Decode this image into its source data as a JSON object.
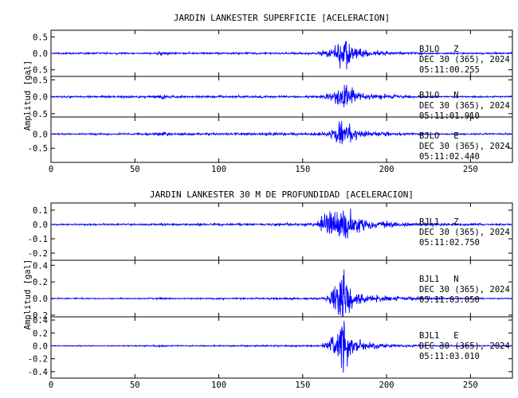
{
  "chart_data": [
    {
      "type": "line",
      "title": "JARDIN LANKESTER SUPERFICIE [ACELERACION]",
      "ylabel": "Amplitud [gal]",
      "xlabel": "",
      "xlim": [
        0,
        275
      ],
      "x_ticks": [
        0,
        50,
        100,
        150,
        200,
        250
      ],
      "line_color": "#0000ff",
      "panels": [
        {
          "station": "BJLO",
          "channel": "Z",
          "date": "DEC 30 (365), 2024",
          "time": "05:11:00.255",
          "ylim": [
            -0.7,
            0.7
          ],
          "y_ticks": [
            0.5,
            0.0,
            -0.5
          ],
          "y_tick_labels": [
            "0.5",
            "0.0",
            "-0.5"
          ],
          "envelope": [
            [
              0,
              0.02
            ],
            [
              60,
              0.02
            ],
            [
              67,
              0.05
            ],
            [
              72,
              0.02
            ],
            [
              160,
              0.03
            ],
            [
              164,
              0.12
            ],
            [
              170,
              0.22
            ],
            [
              173,
              0.35
            ],
            [
              175,
              0.6
            ],
            [
              177,
              0.3
            ],
            [
              182,
              0.14
            ],
            [
              190,
              0.07
            ],
            [
              205,
              0.04
            ],
            [
              230,
              0.02
            ],
            [
              275,
              0.02
            ]
          ]
        },
        {
          "station": "BJLO",
          "channel": "N",
          "date": "DEC 30 (365), 2024",
          "time": "05:11:01.910",
          "ylim": [
            -0.6,
            0.6
          ],
          "y_ticks": [
            0.5,
            0.0,
            -0.5
          ],
          "y_tick_labels": [
            "0.5",
            "0.0",
            "-0.5"
          ],
          "envelope": [
            [
              0,
              0.02
            ],
            [
              60,
              0.03
            ],
            [
              66,
              0.06
            ],
            [
              72,
              0.03
            ],
            [
              160,
              0.03
            ],
            [
              166,
              0.08
            ],
            [
              172,
              0.2
            ],
            [
              175,
              0.55
            ],
            [
              177,
              0.3
            ],
            [
              182,
              0.12
            ],
            [
              190,
              0.06
            ],
            [
              205,
              0.04
            ],
            [
              230,
              0.02
            ],
            [
              275,
              0.02
            ]
          ]
        },
        {
          "station": "BJLO",
          "channel": "E",
          "date": "DEC 30 (365), 2024",
          "time": "05:11:02.440",
          "ylim": [
            -1.0,
            0.6
          ],
          "y_ticks": [
            0.0,
            -0.5
          ],
          "y_tick_labels": [
            "0.0",
            "-0.5"
          ],
          "envelope": [
            [
              0,
              0.02
            ],
            [
              60,
              0.03
            ],
            [
              66,
              0.07
            ],
            [
              72,
              0.03
            ],
            [
              160,
              0.04
            ],
            [
              165,
              0.12
            ],
            [
              170,
              0.25
            ],
            [
              173,
              0.4
            ],
            [
              175,
              0.65
            ],
            [
              177,
              0.35
            ],
            [
              182,
              0.15
            ],
            [
              190,
              0.07
            ],
            [
              205,
              0.04
            ],
            [
              230,
              0.02
            ],
            [
              275,
              0.02
            ]
          ]
        }
      ]
    },
    {
      "type": "line",
      "title": "JARDIN LANKESTER 30 M DE PROFUNDIDAD [ACELERACION]",
      "ylabel": "Amplitud [gal]",
      "xlabel": "",
      "xlim": [
        0,
        275
      ],
      "x_ticks": [
        0,
        50,
        100,
        150,
        200,
        250
      ],
      "line_color": "#0000ff",
      "panels": [
        {
          "station": "BJL1",
          "channel": "Z",
          "date": "DEC 30 (365), 2024",
          "time": "05:11:02.750",
          "ylim": [
            -0.25,
            0.15
          ],
          "y_ticks": [
            0.1,
            0.0,
            -0.1,
            -0.2
          ],
          "y_tick_labels": [
            "0.1",
            "0.0",
            "-0.1",
            "-0.2"
          ],
          "envelope": [
            [
              0,
              0.004
            ],
            [
              60,
              0.005
            ],
            [
              66,
              0.008
            ],
            [
              72,
              0.005
            ],
            [
              158,
              0.008
            ],
            [
              162,
              0.05
            ],
            [
              166,
              0.08
            ],
            [
              170,
              0.09
            ],
            [
              173,
              0.1
            ],
            [
              175,
              0.13
            ],
            [
              178,
              0.07
            ],
            [
              185,
              0.04
            ],
            [
              195,
              0.02
            ],
            [
              215,
              0.01
            ],
            [
              240,
              0.006
            ],
            [
              275,
              0.004
            ]
          ]
        },
        {
          "station": "BJL1",
          "channel": "N",
          "date": "DEC 30 (365), 2024",
          "time": "05:11:03.050",
          "ylim": [
            -0.22,
            0.46
          ],
          "y_ticks": [
            0.4,
            0.2,
            0.0,
            -0.2
          ],
          "y_tick_labels": [
            "0.4",
            "0.2",
            "0.0",
            "-0.2"
          ],
          "envelope": [
            [
              0,
              0.005
            ],
            [
              60,
              0.006
            ],
            [
              66,
              0.012
            ],
            [
              72,
              0.006
            ],
            [
              160,
              0.01
            ],
            [
              165,
              0.04
            ],
            [
              170,
              0.12
            ],
            [
              174,
              0.38
            ],
            [
              176,
              0.2
            ],
            [
              180,
              0.08
            ],
            [
              190,
              0.04
            ],
            [
              205,
              0.02
            ],
            [
              230,
              0.01
            ],
            [
              275,
              0.005
            ]
          ]
        },
        {
          "station": "BJL1",
          "channel": "E",
          "date": "DEC 30 (365), 2024",
          "time": "05:11:03.010",
          "ylim": [
            -0.5,
            0.45
          ],
          "y_ticks": [
            0.4,
            0.2,
            0.0,
            -0.2,
            -0.4
          ],
          "y_tick_labels": [
            "0.4",
            "0.2",
            "0.0",
            "-0.2",
            "-0.4"
          ],
          "envelope": [
            [
              0,
              0.005
            ],
            [
              60,
              0.007
            ],
            [
              66,
              0.015
            ],
            [
              72,
              0.007
            ],
            [
              160,
              0.01
            ],
            [
              165,
              0.06
            ],
            [
              170,
              0.15
            ],
            [
              174,
              0.42
            ],
            [
              176,
              0.22
            ],
            [
              180,
              0.09
            ],
            [
              190,
              0.04
            ],
            [
              205,
              0.02
            ],
            [
              230,
              0.01
            ],
            [
              275,
              0.005
            ]
          ]
        }
      ]
    }
  ]
}
